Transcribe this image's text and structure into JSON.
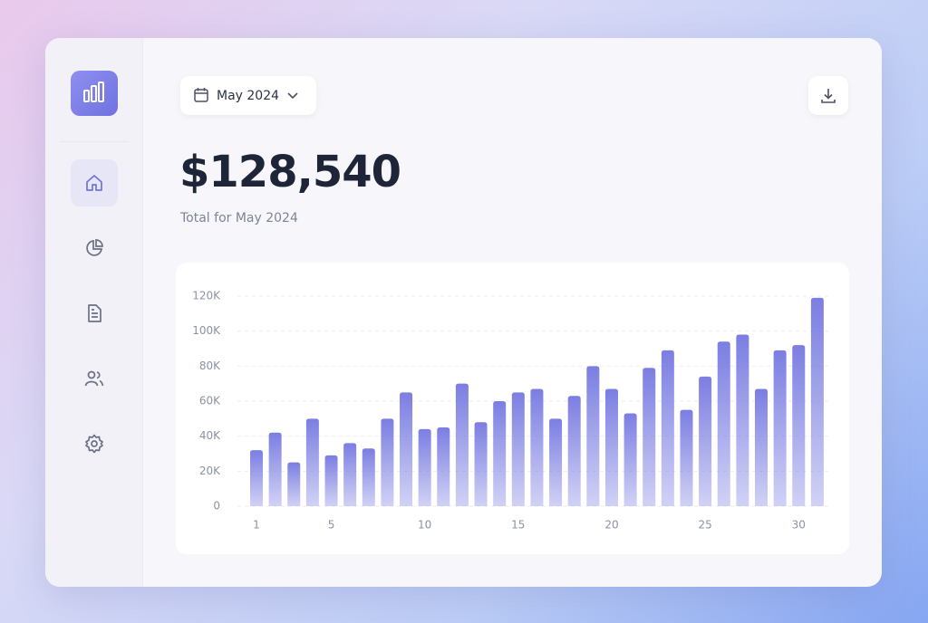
{
  "header": {
    "date_picker": "May 2024"
  },
  "summary": {
    "total": "$128,540",
    "caption": "Total for May 2024"
  },
  "chart_data": {
    "type": "bar",
    "color": "#7b7ee2",
    "grid": true,
    "categories": [
      "1",
      null,
      null,
      null,
      "5",
      null,
      null,
      null,
      null,
      "10",
      null,
      null,
      null,
      null,
      "15",
      null,
      null,
      null,
      null,
      "20",
      null,
      null,
      null,
      null,
      "25",
      null,
      null,
      null,
      null,
      "30",
      null
    ],
    "values": [
      32000,
      42000,
      25000,
      50000,
      29000,
      36000,
      33000,
      50000,
      65000,
      44000,
      45000,
      70000,
      48000,
      60000,
      65000,
      67000,
      50000,
      63000,
      80000,
      67000,
      53000,
      79000,
      89000,
      55000,
      74000,
      94000,
      98000,
      67000,
      89000,
      92000,
      119000
    ],
    "ylim": [
      0,
      120000
    ],
    "yticks": [
      0,
      {
        "value": 20000,
        "label": "20K"
      },
      {
        "value": 40000,
        "label": "40K"
      },
      {
        "value": 60000,
        "label": "60K"
      },
      {
        "value": 80000,
        "label": "80K"
      },
      {
        "value": 100000,
        "label": "100K"
      },
      {
        "value": 120000,
        "label": "120K"
      }
    ]
  }
}
